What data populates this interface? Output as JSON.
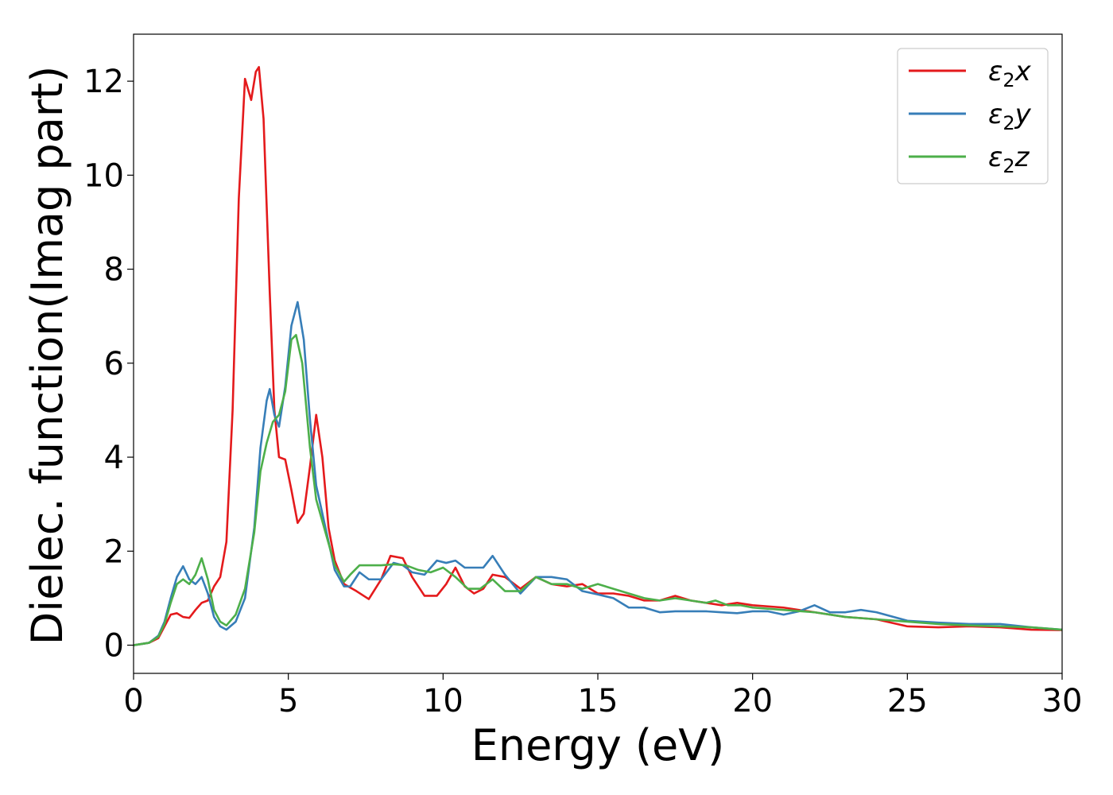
{
  "chart_data": {
    "type": "line",
    "title": "",
    "xlabel": "Energy (eV)",
    "ylabel": "Dielec. function(Imag part)",
    "xlim": [
      0,
      30
    ],
    "ylim": [
      -0.6,
      13
    ],
    "x_ticks": [
      0,
      5,
      10,
      15,
      20,
      25,
      30
    ],
    "x_tick_labels": [
      "0",
      "5",
      "10",
      "15",
      "20",
      "25",
      "30"
    ],
    "y_ticks": [
      0,
      2,
      4,
      6,
      8,
      10,
      12
    ],
    "y_tick_labels": [
      "0",
      "2",
      "4",
      "6",
      "8",
      "10",
      "12"
    ],
    "grid": false,
    "legend_position": "top-right",
    "series": [
      {
        "name": "ε2x",
        "legend_base": "ε",
        "legend_sub": "2",
        "legend_suffix": "x",
        "color": "#e41a1c",
        "points": [
          [
            0,
            0
          ],
          [
            0.5,
            0.05
          ],
          [
            0.8,
            0.15
          ],
          [
            1.0,
            0.4
          ],
          [
            1.2,
            0.65
          ],
          [
            1.4,
            0.68
          ],
          [
            1.6,
            0.6
          ],
          [
            1.8,
            0.58
          ],
          [
            2.0,
            0.75
          ],
          [
            2.2,
            0.9
          ],
          [
            2.4,
            0.95
          ],
          [
            2.6,
            1.25
          ],
          [
            2.8,
            1.45
          ],
          [
            3.0,
            2.2
          ],
          [
            3.2,
            5.0
          ],
          [
            3.4,
            9.5
          ],
          [
            3.6,
            12.05
          ],
          [
            3.8,
            11.6
          ],
          [
            3.95,
            12.2
          ],
          [
            4.05,
            12.3
          ],
          [
            4.2,
            11.2
          ],
          [
            4.4,
            7.5
          ],
          [
            4.55,
            5.0
          ],
          [
            4.7,
            4.0
          ],
          [
            4.9,
            3.95
          ],
          [
            5.1,
            3.3
          ],
          [
            5.3,
            2.6
          ],
          [
            5.5,
            2.8
          ],
          [
            5.7,
            3.8
          ],
          [
            5.9,
            4.9
          ],
          [
            6.1,
            4.0
          ],
          [
            6.3,
            2.5
          ],
          [
            6.5,
            1.8
          ],
          [
            6.8,
            1.3
          ],
          [
            7.2,
            1.15
          ],
          [
            7.6,
            0.98
          ],
          [
            8.0,
            1.4
          ],
          [
            8.3,
            1.9
          ],
          [
            8.7,
            1.85
          ],
          [
            9.0,
            1.45
          ],
          [
            9.4,
            1.05
          ],
          [
            9.8,
            1.05
          ],
          [
            10.1,
            1.3
          ],
          [
            10.4,
            1.65
          ],
          [
            10.7,
            1.25
          ],
          [
            11.0,
            1.1
          ],
          [
            11.3,
            1.2
          ],
          [
            11.6,
            1.5
          ],
          [
            12.0,
            1.45
          ],
          [
            12.5,
            1.2
          ],
          [
            13.0,
            1.45
          ],
          [
            13.5,
            1.3
          ],
          [
            14.0,
            1.25
          ],
          [
            14.5,
            1.3
          ],
          [
            15.0,
            1.1
          ],
          [
            15.5,
            1.1
          ],
          [
            16.0,
            1.05
          ],
          [
            16.5,
            0.95
          ],
          [
            17.0,
            0.95
          ],
          [
            17.5,
            1.05
          ],
          [
            18.0,
            0.95
          ],
          [
            18.5,
            0.9
          ],
          [
            19.0,
            0.85
          ],
          [
            19.5,
            0.9
          ],
          [
            20.0,
            0.85
          ],
          [
            21.0,
            0.8
          ],
          [
            22.0,
            0.7
          ],
          [
            23.0,
            0.6
          ],
          [
            24.0,
            0.55
          ],
          [
            25.0,
            0.4
          ],
          [
            26.0,
            0.38
          ],
          [
            27.0,
            0.4
          ],
          [
            28.0,
            0.38
          ],
          [
            29.0,
            0.33
          ],
          [
            30.0,
            0.32
          ]
        ]
      },
      {
        "name": "ε2y",
        "legend_base": "ε",
        "legend_sub": "2",
        "legend_suffix": "y",
        "color": "#377eb8",
        "points": [
          [
            0,
            0
          ],
          [
            0.5,
            0.05
          ],
          [
            0.8,
            0.2
          ],
          [
            1.0,
            0.5
          ],
          [
            1.2,
            1.0
          ],
          [
            1.4,
            1.45
          ],
          [
            1.6,
            1.68
          ],
          [
            1.8,
            1.4
          ],
          [
            2.0,
            1.3
          ],
          [
            2.2,
            1.45
          ],
          [
            2.4,
            1.1
          ],
          [
            2.6,
            0.6
          ],
          [
            2.8,
            0.4
          ],
          [
            3.0,
            0.33
          ],
          [
            3.3,
            0.5
          ],
          [
            3.6,
            1.0
          ],
          [
            3.9,
            2.5
          ],
          [
            4.1,
            4.2
          ],
          [
            4.3,
            5.2
          ],
          [
            4.4,
            5.45
          ],
          [
            4.55,
            4.9
          ],
          [
            4.7,
            4.65
          ],
          [
            4.9,
            5.5
          ],
          [
            5.1,
            6.8
          ],
          [
            5.3,
            7.3
          ],
          [
            5.5,
            6.5
          ],
          [
            5.7,
            4.8
          ],
          [
            5.9,
            3.4
          ],
          [
            6.2,
            2.5
          ],
          [
            6.5,
            1.6
          ],
          [
            6.8,
            1.25
          ],
          [
            7.0,
            1.25
          ],
          [
            7.3,
            1.55
          ],
          [
            7.6,
            1.4
          ],
          [
            8.0,
            1.4
          ],
          [
            8.4,
            1.75
          ],
          [
            8.7,
            1.7
          ],
          [
            9.0,
            1.55
          ],
          [
            9.4,
            1.5
          ],
          [
            9.8,
            1.8
          ],
          [
            10.1,
            1.75
          ],
          [
            10.4,
            1.8
          ],
          [
            10.7,
            1.65
          ],
          [
            11.0,
            1.65
          ],
          [
            11.3,
            1.65
          ],
          [
            11.6,
            1.9
          ],
          [
            12.0,
            1.5
          ],
          [
            12.5,
            1.1
          ],
          [
            13.0,
            1.45
          ],
          [
            13.5,
            1.45
          ],
          [
            14.0,
            1.4
          ],
          [
            14.5,
            1.15
          ],
          [
            15.0,
            1.08
          ],
          [
            15.5,
            1.0
          ],
          [
            16.0,
            0.8
          ],
          [
            16.5,
            0.8
          ],
          [
            17.0,
            0.7
          ],
          [
            17.5,
            0.72
          ],
          [
            18.0,
            0.72
          ],
          [
            18.5,
            0.72
          ],
          [
            19.0,
            0.7
          ],
          [
            19.5,
            0.68
          ],
          [
            20.0,
            0.72
          ],
          [
            20.5,
            0.72
          ],
          [
            21.0,
            0.65
          ],
          [
            21.5,
            0.72
          ],
          [
            22.0,
            0.85
          ],
          [
            22.5,
            0.7
          ],
          [
            23.0,
            0.7
          ],
          [
            23.5,
            0.75
          ],
          [
            24.0,
            0.7
          ],
          [
            25.0,
            0.52
          ],
          [
            26.0,
            0.48
          ],
          [
            27.0,
            0.45
          ],
          [
            28.0,
            0.45
          ],
          [
            29.0,
            0.38
          ],
          [
            30.0,
            0.33
          ]
        ]
      },
      {
        "name": "ε2z",
        "legend_base": "ε",
        "legend_sub": "2",
        "legend_suffix": "z",
        "color": "#4daf4a",
        "points": [
          [
            0,
            0
          ],
          [
            0.5,
            0.05
          ],
          [
            0.8,
            0.18
          ],
          [
            1.0,
            0.45
          ],
          [
            1.2,
            0.9
          ],
          [
            1.4,
            1.3
          ],
          [
            1.6,
            1.4
          ],
          [
            1.8,
            1.3
          ],
          [
            2.0,
            1.5
          ],
          [
            2.2,
            1.85
          ],
          [
            2.4,
            1.4
          ],
          [
            2.6,
            0.75
          ],
          [
            2.8,
            0.5
          ],
          [
            3.0,
            0.42
          ],
          [
            3.3,
            0.65
          ],
          [
            3.6,
            1.2
          ],
          [
            3.9,
            2.4
          ],
          [
            4.1,
            3.7
          ],
          [
            4.3,
            4.3
          ],
          [
            4.5,
            4.75
          ],
          [
            4.7,
            4.9
          ],
          [
            4.9,
            5.4
          ],
          [
            5.1,
            6.5
          ],
          [
            5.25,
            6.6
          ],
          [
            5.45,
            6.0
          ],
          [
            5.7,
            4.2
          ],
          [
            5.9,
            3.1
          ],
          [
            6.2,
            2.4
          ],
          [
            6.5,
            1.7
          ],
          [
            6.8,
            1.35
          ],
          [
            7.0,
            1.5
          ],
          [
            7.3,
            1.7
          ],
          [
            7.6,
            1.7
          ],
          [
            8.0,
            1.7
          ],
          [
            8.4,
            1.72
          ],
          [
            8.8,
            1.7
          ],
          [
            9.2,
            1.6
          ],
          [
            9.6,
            1.55
          ],
          [
            10.0,
            1.65
          ],
          [
            10.4,
            1.45
          ],
          [
            10.8,
            1.2
          ],
          [
            11.2,
            1.2
          ],
          [
            11.6,
            1.4
          ],
          [
            12.0,
            1.15
          ],
          [
            12.5,
            1.15
          ],
          [
            13.0,
            1.45
          ],
          [
            13.5,
            1.3
          ],
          [
            14.0,
            1.3
          ],
          [
            14.5,
            1.2
          ],
          [
            15.0,
            1.3
          ],
          [
            15.5,
            1.2
          ],
          [
            16.0,
            1.1
          ],
          [
            16.5,
            1.0
          ],
          [
            17.0,
            0.95
          ],
          [
            17.5,
            1.0
          ],
          [
            18.0,
            0.95
          ],
          [
            18.5,
            0.9
          ],
          [
            18.8,
            0.95
          ],
          [
            19.2,
            0.85
          ],
          [
            19.6,
            0.85
          ],
          [
            20.0,
            0.8
          ],
          [
            21.0,
            0.75
          ],
          [
            22.0,
            0.7
          ],
          [
            23.0,
            0.6
          ],
          [
            24.0,
            0.55
          ],
          [
            25.0,
            0.5
          ],
          [
            26.0,
            0.45
          ],
          [
            27.0,
            0.42
          ],
          [
            28.0,
            0.4
          ],
          [
            29.0,
            0.38
          ],
          [
            30.0,
            0.33
          ]
        ]
      }
    ]
  }
}
